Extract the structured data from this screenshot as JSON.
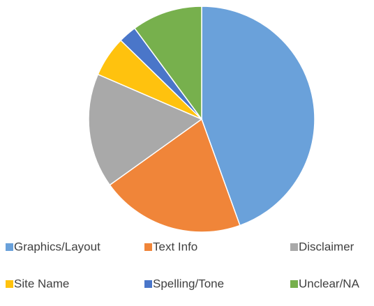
{
  "chart_data": {
    "type": "pie",
    "categories": [
      "Graphics/Layout",
      "Text Info",
      "Disclaimer",
      "Site Name",
      "Spelling/Tone",
      "Unclear/NA"
    ],
    "values": [
      44.5,
      20.6,
      16.4,
      5.8,
      2.6,
      10.1
    ],
    "colors": [
      "#6aa1da",
      "#f08539",
      "#a9a9a9",
      "#ffc20e",
      "#4a76c9",
      "#77b04d"
    ],
    "legend": "bottom"
  }
}
